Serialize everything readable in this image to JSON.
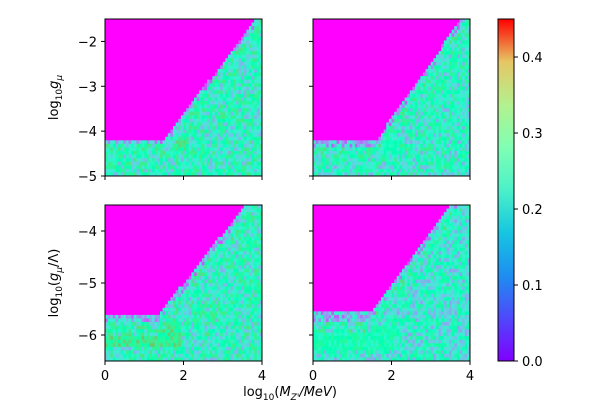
{
  "chart_data": {
    "type": "heatmap",
    "colormap": "rainbow",
    "colorbar": {
      "range": [
        0.0,
        0.45
      ],
      "ticks": [
        "0.0",
        "0.1",
        "0.2",
        "0.3",
        "0.4"
      ]
    },
    "xlabel": "log10(M_Z'/MeV)",
    "x_ticks": [
      "0",
      "2",
      "4"
    ],
    "xlim": [
      0,
      4
    ],
    "rows": [
      {
        "ylabel": "log10 g_μ",
        "ylim": [
          -5,
          -1.5
        ],
        "y_ticks": [
          "−2",
          "−3",
          "−4",
          "−5"
        ],
        "panels": [
          {
            "plateau_y": -4.2,
            "edge_x": 1.55,
            "slope": 1.18,
            "band_low": -4.45,
            "band_high": -4.05,
            "peak": 0.28,
            "mean": 0.2
          },
          {
            "plateau_y": -4.25,
            "edge_x": 1.6,
            "slope": 1.25,
            "band_low": -4.5,
            "band_high": -4.1,
            "peak": 0.22,
            "mean": 0.19
          }
        ]
      },
      {
        "ylabel": "log10(g_μ/Λ)",
        "ylim": [
          -6.5,
          -3.5
        ],
        "y_ticks": [
          "−4",
          "−5",
          "−6"
        ],
        "panels": [
          {
            "plateau_y": -5.65,
            "edge_x": 1.35,
            "slope": 0.95,
            "band_low": -6.25,
            "band_high": -5.75,
            "peak": 0.3,
            "mean": 0.2
          },
          {
            "plateau_y": -5.6,
            "edge_x": 1.45,
            "slope": 1.0,
            "band_low": -6.3,
            "band_high": -5.85,
            "peak": 0.24,
            "mean": 0.18
          }
        ]
      }
    ]
  }
}
